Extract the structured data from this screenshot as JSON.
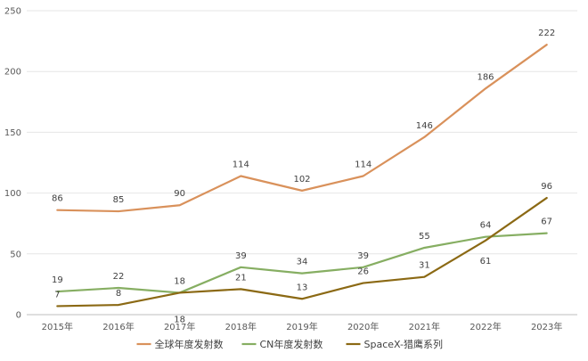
{
  "chart_data": {
    "type": "line",
    "categories": [
      "2015年",
      "2016年",
      "2017年",
      "2018年",
      "2019年",
      "2020年",
      "2021年",
      "2022年",
      "2023年"
    ],
    "ylim": [
      0,
      250
    ],
    "yticks": [
      0,
      50,
      100,
      150,
      200,
      250
    ],
    "grid": true,
    "legend_position": "bottom",
    "series": [
      {
        "name": "全球年度发射数",
        "color": "#D9915B",
        "values": [
          86,
          85,
          90,
          114,
          102,
          114,
          146,
          186,
          222
        ]
      },
      {
        "name": "CN年度发射数",
        "color": "#86AE62",
        "values": [
          19,
          22,
          18,
          39,
          34,
          39,
          55,
          64,
          67
        ]
      },
      {
        "name": "SpaceX-猎鹰系列",
        "color": "#8B6914",
        "values": [
          7,
          8,
          18,
          21,
          13,
          26,
          31,
          61,
          96
        ]
      }
    ]
  }
}
